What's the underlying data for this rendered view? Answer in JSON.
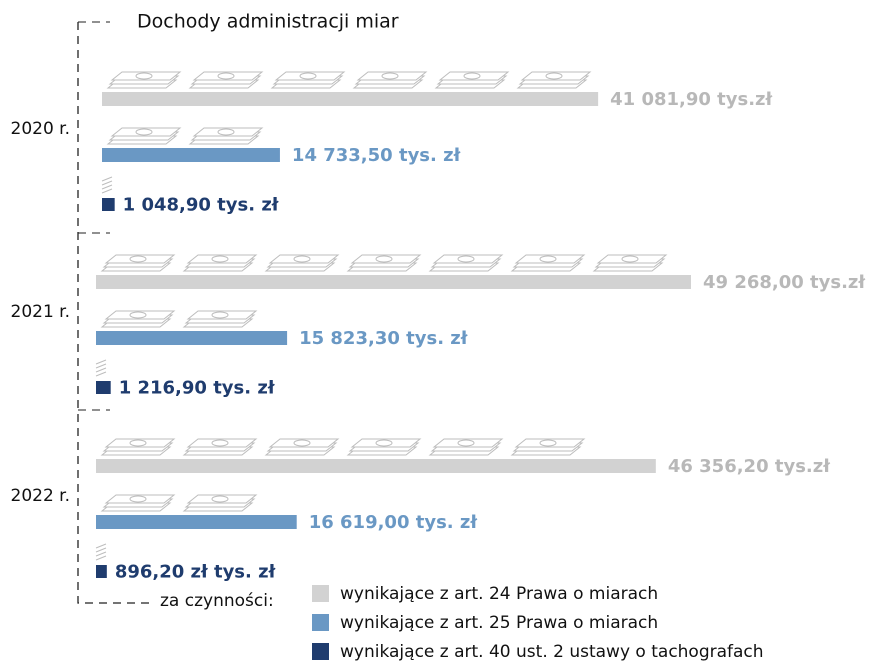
{
  "chart_data": {
    "type": "bar",
    "title": "Dochody administracji miar",
    "categories": [
      "2020 r.",
      "2021 r.",
      "2022 r."
    ],
    "legend_title": "za czynności:",
    "series": [
      {
        "name": "wynikające z art. 24 Prawa o miarach",
        "color": "#d2d2d2",
        "label_color": "#b8b8b8",
        "values": [
          41081.9,
          49268.0,
          46356.2
        ],
        "value_labels": [
          "41 081,90 tys.zł",
          "49 268,00 tys.zł",
          "46 356,20 tys.zł"
        ]
      },
      {
        "name": "wynikające z art. 25 Prawa o miarach",
        "color": "#6a98c4",
        "label_color": "#6a98c4",
        "values": [
          14733.5,
          15823.3,
          16619.0
        ],
        "value_labels": [
          "14 733,50 tys. zł",
          "15 823,30 tys. zł",
          "16 619,00 tys. zł"
        ]
      },
      {
        "name": "wynikające z art. 40 ust. 2 ustawy o tachografach",
        "color": "#1f3c6e",
        "label_color": "#1f3c6e",
        "values": [
          1048.9,
          1216.9,
          896.2
        ],
        "value_labels": [
          "1 048,90 tys. zł",
          "1 216,90 tys. zł",
          "896,20 zł tys. zł"
        ]
      }
    ]
  }
}
